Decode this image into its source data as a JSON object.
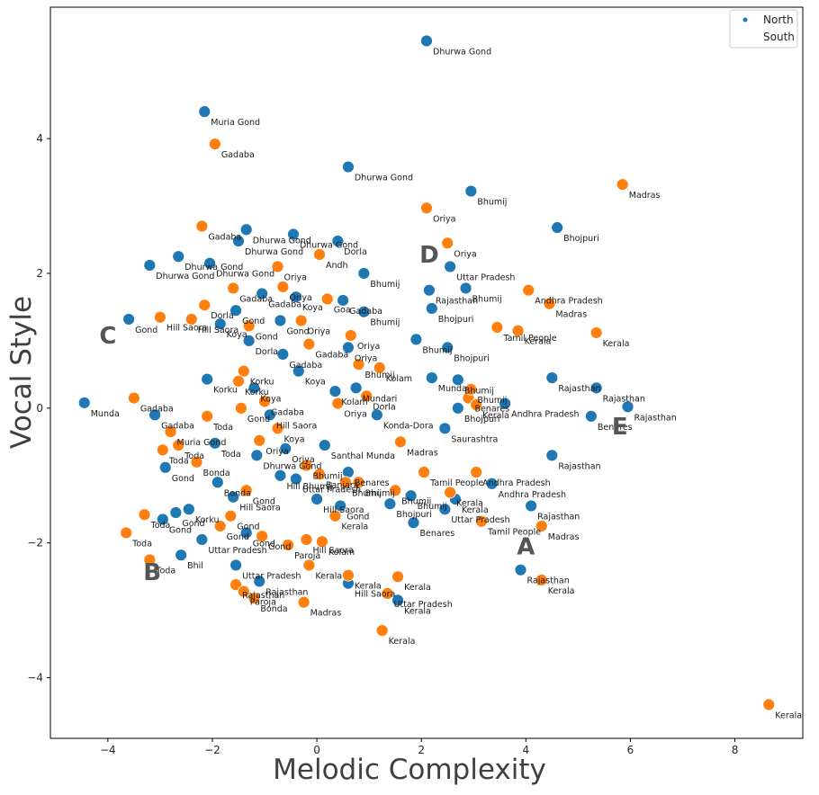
{
  "chart_data": {
    "type": "scatter",
    "xlabel": "Melodic Complexity",
    "ylabel": "Vocal Style",
    "xlim": [
      -5.1,
      9.3
    ],
    "ylim": [
      -4.9,
      5.95
    ],
    "xticks": [
      -4,
      -2,
      0,
      2,
      4,
      6,
      8
    ],
    "yticks": [
      -4,
      -2,
      0,
      2,
      4
    ],
    "grid": false,
    "legend": {
      "placement": "top-right",
      "entries": [
        "North",
        "South"
      ]
    },
    "colors": {
      "North": "#1f77b4",
      "South": "#ff7f0e"
    },
    "cluster_labels": [
      {
        "text": "A",
        "x": 4.0,
        "y": -2.05
      },
      {
        "text": "B",
        "x": -3.15,
        "y": -2.43
      },
      {
        "text": "C",
        "x": -4.0,
        "y": 1.08
      },
      {
        "text": "D",
        "x": 2.15,
        "y": 2.28
      },
      {
        "text": "E",
        "x": 5.8,
        "y": -0.27
      }
    ],
    "series": [
      {
        "name": "North",
        "points": [
          {
            "x": 2.1,
            "y": 5.45,
            "label": "Dhurwa Gond"
          },
          {
            "x": -2.15,
            "y": 4.4,
            "label": "Muria Gond"
          },
          {
            "x": 0.6,
            "y": 3.58,
            "label": "Dhurwa Gond"
          },
          {
            "x": 2.95,
            "y": 3.22,
            "label": "Bhumij"
          },
          {
            "x": 4.6,
            "y": 2.68,
            "label": "Bhojpuri"
          },
          {
            "x": -1.35,
            "y": 2.65,
            "label": "Dhurwa Gond"
          },
          {
            "x": -0.45,
            "y": 2.58,
            "label": "Dhurwa Gond"
          },
          {
            "x": 0.4,
            "y": 2.48,
            "label": "Dorla"
          },
          {
            "x": -1.5,
            "y": 2.48,
            "label": "Dhurwa Gond"
          },
          {
            "x": -2.65,
            "y": 2.25,
            "label": "Dhurwa Gond"
          },
          {
            "x": -2.05,
            "y": 2.15,
            "label": "Dhurwa Gond"
          },
          {
            "x": -3.2,
            "y": 2.12,
            "label": "Dhurwa Gond"
          },
          {
            "x": 0.9,
            "y": 2.0,
            "label": "Bhumij"
          },
          {
            "x": 2.55,
            "y": 2.1,
            "label": "Uttar Pradesh"
          },
          {
            "x": 2.85,
            "y": 1.78,
            "label": "Bhumij"
          },
          {
            "x": 2.15,
            "y": 1.75,
            "label": "Rajasthan"
          },
          {
            "x": 2.2,
            "y": 1.48,
            "label": "Bhojpuri"
          },
          {
            "x": 0.9,
            "y": 1.43,
            "label": "Bhumij"
          },
          {
            "x": -3.6,
            "y": 1.32,
            "label": "Gond"
          },
          {
            "x": 1.9,
            "y": 1.02,
            "label": "Bhumij"
          },
          {
            "x": 2.5,
            "y": 0.9,
            "label": "Bhojpuri"
          },
          {
            "x": 0.6,
            "y": 0.9,
            "label": "Oriya"
          },
          {
            "x": 4.5,
            "y": 0.45,
            "label": "Rajasthan"
          },
          {
            "x": 5.35,
            "y": 0.3,
            "label": "Rajasthan"
          },
          {
            "x": 5.95,
            "y": 0.02,
            "label": "Rajasthan"
          },
          {
            "x": 5.25,
            "y": -0.12,
            "label": "Benares"
          },
          {
            "x": 2.2,
            "y": 0.45,
            "label": "Munda"
          },
          {
            "x": 2.7,
            "y": 0.42,
            "label": "Bhumij"
          },
          {
            "x": 3.6,
            "y": 0.07,
            "label": "Andhra Pradesh"
          },
          {
            "x": 2.7,
            "y": 0.0,
            "label": "Bhojpuri"
          },
          {
            "x": 1.15,
            "y": -0.1,
            "label": "Konda-Dora"
          },
          {
            "x": 2.45,
            "y": -0.3,
            "label": "Saurashtra"
          },
          {
            "x": -4.45,
            "y": 0.08,
            "label": "Munda"
          },
          {
            "x": -3.1,
            "y": -0.1,
            "label": "Gadaba"
          },
          {
            "x": -1.95,
            "y": -0.52,
            "label": "Toda"
          },
          {
            "x": -2.1,
            "y": 0.43,
            "label": "Korku"
          },
          {
            "x": 0.15,
            "y": -0.55,
            "label": "Santhal Munda"
          },
          {
            "x": 4.5,
            "y": -0.7,
            "label": "Rajasthan"
          },
          {
            "x": -2.9,
            "y": -0.88,
            "label": "Gond"
          },
          {
            "x": -1.9,
            "y": -1.1,
            "label": "Bonda"
          },
          {
            "x": 0.6,
            "y": -0.95,
            "label": "Benares"
          },
          {
            "x": 3.35,
            "y": -1.12,
            "label": "Andhra Pradesh"
          },
          {
            "x": 1.8,
            "y": -1.3,
            "label": "Bhumij"
          },
          {
            "x": 2.65,
            "y": -1.35,
            "label": "Kerala"
          },
          {
            "x": 2.45,
            "y": -1.5,
            "label": "Uttar Pradesh"
          },
          {
            "x": 4.1,
            "y": -1.45,
            "label": "Rajasthan"
          },
          {
            "x": 1.4,
            "y": -1.42,
            "label": "Bhojpuri"
          },
          {
            "x": 1.85,
            "y": -1.7,
            "label": "Benares"
          },
          {
            "x": -1.6,
            "y": -1.32,
            "label": "Hill Saora"
          },
          {
            "x": -2.7,
            "y": -1.55,
            "label": "Gond"
          },
          {
            "x": -2.45,
            "y": -1.5,
            "label": "Korku"
          },
          {
            "x": -2.95,
            "y": -1.65,
            "label": "Gond"
          },
          {
            "x": -2.2,
            "y": -1.95,
            "label": "Uttar Pradesh"
          },
          {
            "x": -2.6,
            "y": -2.18,
            "label": "Bhil"
          },
          {
            "x": -1.55,
            "y": -2.33,
            "label": "Uttar Pradesh"
          },
          {
            "x": -1.1,
            "y": -2.57,
            "label": "Rajasthan"
          },
          {
            "x": 0.6,
            "y": -2.6,
            "label": "Hill Saora"
          },
          {
            "x": 1.55,
            "y": -2.85,
            "label": "Kerala"
          },
          {
            "x": 3.9,
            "y": -2.4,
            "label": "Rajasthan"
          },
          {
            "x": -0.4,
            "y": 1.65,
            "label": "Koya"
          },
          {
            "x": -1.05,
            "y": 1.7,
            "label": "Gadaba"
          },
          {
            "x": -1.85,
            "y": 1.25,
            "label": "Koya"
          },
          {
            "x": -1.3,
            "y": 1.0,
            "label": "Dorla"
          },
          {
            "x": -0.65,
            "y": 0.8,
            "label": "Gadaba"
          },
          {
            "x": -0.35,
            "y": 0.55,
            "label": "Koya"
          },
          {
            "x": -1.2,
            "y": 0.3,
            "label": "Koya"
          },
          {
            "x": -0.9,
            "y": -0.1,
            "label": "Hill Saora"
          },
          {
            "x": -0.6,
            "y": -0.6,
            "label": "Oriya"
          },
          {
            "x": -1.15,
            "y": -0.7,
            "label": "Dhurwa Gond"
          },
          {
            "x": -0.7,
            "y": -1.0,
            "label": "Hill Bhumij"
          },
          {
            "x": -0.4,
            "y": -1.05,
            "label": "Uttar Pradesh"
          },
          {
            "x": 0.0,
            "y": -1.35,
            "label": "Hill Saora"
          },
          {
            "x": 0.45,
            "y": -1.45,
            "label": "Gond"
          },
          {
            "x": -1.35,
            "y": -1.85,
            "label": "Gond"
          },
          {
            "x": 0.35,
            "y": 0.25,
            "label": "Kolam"
          },
          {
            "x": 0.75,
            "y": 0.3,
            "label": "Mundari"
          },
          {
            "x": 0.5,
            "y": 1.6,
            "label": "Gadaba"
          },
          {
            "x": -0.7,
            "y": 1.3,
            "label": "Gond"
          },
          {
            "x": -1.55,
            "y": 1.45,
            "label": "Gond"
          }
        ]
      },
      {
        "name": "South",
        "points": [
          {
            "x": -1.95,
            "y": 3.92,
            "label": "Gadaba"
          },
          {
            "x": 5.85,
            "y": 3.32,
            "label": "Madras"
          },
          {
            "x": 2.1,
            "y": 2.97,
            "label": "Oriya"
          },
          {
            "x": 2.5,
            "y": 2.45,
            "label": "Oriya"
          },
          {
            "x": -2.2,
            "y": 2.7,
            "label": "Gadaba"
          },
          {
            "x": 0.05,
            "y": 2.28,
            "label": "Andh"
          },
          {
            "x": -0.75,
            "y": 2.1,
            "label": "Oriya"
          },
          {
            "x": 4.05,
            "y": 1.75,
            "label": "Andhra Pradesh"
          },
          {
            "x": 4.45,
            "y": 1.55,
            "label": "Madras"
          },
          {
            "x": 3.45,
            "y": 1.2,
            "label": "Tamil People"
          },
          {
            "x": 3.85,
            "y": 1.15,
            "label": "Kerala"
          },
          {
            "x": 5.35,
            "y": 1.12,
            "label": "Kerala"
          },
          {
            "x": -1.6,
            "y": 1.78,
            "label": "Gadaba"
          },
          {
            "x": -2.15,
            "y": 1.53,
            "label": "Dorla"
          },
          {
            "x": -2.4,
            "y": 1.32,
            "label": "Hill Saora"
          },
          {
            "x": -3.0,
            "y": 1.35,
            "label": "Hill Saora"
          },
          {
            "x": 0.2,
            "y": 1.62,
            "label": "Goa"
          },
          {
            "x": 0.65,
            "y": 1.08,
            "label": "Oriya"
          },
          {
            "x": 0.8,
            "y": 0.65,
            "label": "Bhumij"
          },
          {
            "x": -0.15,
            "y": 0.95,
            "label": "Gadaba"
          },
          {
            "x": 1.2,
            "y": 0.6,
            "label": "Kolam"
          },
          {
            "x": -3.5,
            "y": 0.15,
            "label": "Gadaba"
          },
          {
            "x": -1.4,
            "y": 0.55,
            "label": "Korku"
          },
          {
            "x": -1.5,
            "y": 0.4,
            "label": "Korku"
          },
          {
            "x": -2.1,
            "y": -0.12,
            "label": "Toda"
          },
          {
            "x": -2.8,
            "y": -0.35,
            "label": "Muria Gond"
          },
          {
            "x": -2.65,
            "y": -0.55,
            "label": "Toda"
          },
          {
            "x": -2.95,
            "y": -0.62,
            "label": "Toda"
          },
          {
            "x": -2.3,
            "y": -0.8,
            "label": "Bonda"
          },
          {
            "x": 0.95,
            "y": 0.18,
            "label": "Dorla"
          },
          {
            "x": 0.4,
            "y": 0.07,
            "label": "Oriya"
          },
          {
            "x": 2.9,
            "y": 0.15,
            "label": "Benares"
          },
          {
            "x": 3.05,
            "y": 0.05,
            "label": "Kerala"
          },
          {
            "x": 2.95,
            "y": 0.28,
            "label": "Bhumij"
          },
          {
            "x": 1.6,
            "y": -0.5,
            "label": "Madras"
          },
          {
            "x": 2.05,
            "y": -0.95,
            "label": "Tamil People"
          },
          {
            "x": 3.05,
            "y": -0.95,
            "label": "Andhra Pradesh"
          },
          {
            "x": 2.55,
            "y": -1.25,
            "label": "Kerala"
          },
          {
            "x": 1.5,
            "y": -1.22,
            "label": "Bhumij"
          },
          {
            "x": 3.15,
            "y": -1.68,
            "label": "Tamil People"
          },
          {
            "x": 4.3,
            "y": -1.75,
            "label": "Madras"
          },
          {
            "x": -1.35,
            "y": -1.22,
            "label": "Gond"
          },
          {
            "x": -1.1,
            "y": -0.48,
            "label": "Oriya"
          },
          {
            "x": -0.2,
            "y": -0.85,
            "label": "Bhumij"
          },
          {
            "x": 0.05,
            "y": -0.98,
            "label": "Banjara"
          },
          {
            "x": 0.8,
            "y": -1.1,
            "label": "Bhumij"
          },
          {
            "x": 0.35,
            "y": -1.6,
            "label": "Kerala"
          },
          {
            "x": -3.3,
            "y": -1.58,
            "label": "Toda"
          },
          {
            "x": -3.65,
            "y": -1.85,
            "label": "Toda"
          },
          {
            "x": -3.2,
            "y": -2.25,
            "label": "Toda"
          },
          {
            "x": -1.65,
            "y": -1.6,
            "label": "Gond"
          },
          {
            "x": -1.85,
            "y": -1.75,
            "label": "Gond"
          },
          {
            "x": -1.05,
            "y": -1.9,
            "label": "Gond"
          },
          {
            "x": -0.55,
            "y": -2.03,
            "label": "Paroja"
          },
          {
            "x": -0.2,
            "y": -1.95,
            "label": "Hill Saora"
          },
          {
            "x": 0.1,
            "y": -1.98,
            "label": "Kolam"
          },
          {
            "x": -0.15,
            "y": -2.33,
            "label": "Kerala"
          },
          {
            "x": 0.6,
            "y": -2.48,
            "label": "Kerala"
          },
          {
            "x": 1.55,
            "y": -2.5,
            "label": "Kerala"
          },
          {
            "x": 1.35,
            "y": -2.75,
            "label": "Uttar Pradesh"
          },
          {
            "x": -1.55,
            "y": -2.62,
            "label": "Rajasthan"
          },
          {
            "x": -1.4,
            "y": -2.72,
            "label": "Paroja"
          },
          {
            "x": -1.2,
            "y": -2.82,
            "label": "Bonda"
          },
          {
            "x": -0.25,
            "y": -2.88,
            "label": "Madras"
          },
          {
            "x": 4.3,
            "y": -2.55,
            "label": "Kerala"
          },
          {
            "x": 1.25,
            "y": -3.3,
            "label": "Kerala"
          },
          {
            "x": 8.65,
            "y": -4.4,
            "label": "Kerala"
          },
          {
            "x": -0.65,
            "y": 1.8,
            "label": "Oriya"
          },
          {
            "x": -1.3,
            "y": 1.22,
            "label": "Gond"
          },
          {
            "x": -1.45,
            "y": 0.0,
            "label": "Gond"
          },
          {
            "x": -0.75,
            "y": -0.3,
            "label": "Koya"
          },
          {
            "x": -1.0,
            "y": 0.1,
            "label": "Gadaba"
          },
          {
            "x": -0.3,
            "y": 1.3,
            "label": "Oriya"
          },
          {
            "x": 0.55,
            "y": -1.1,
            "label": "Bhumij"
          }
        ]
      }
    ]
  }
}
